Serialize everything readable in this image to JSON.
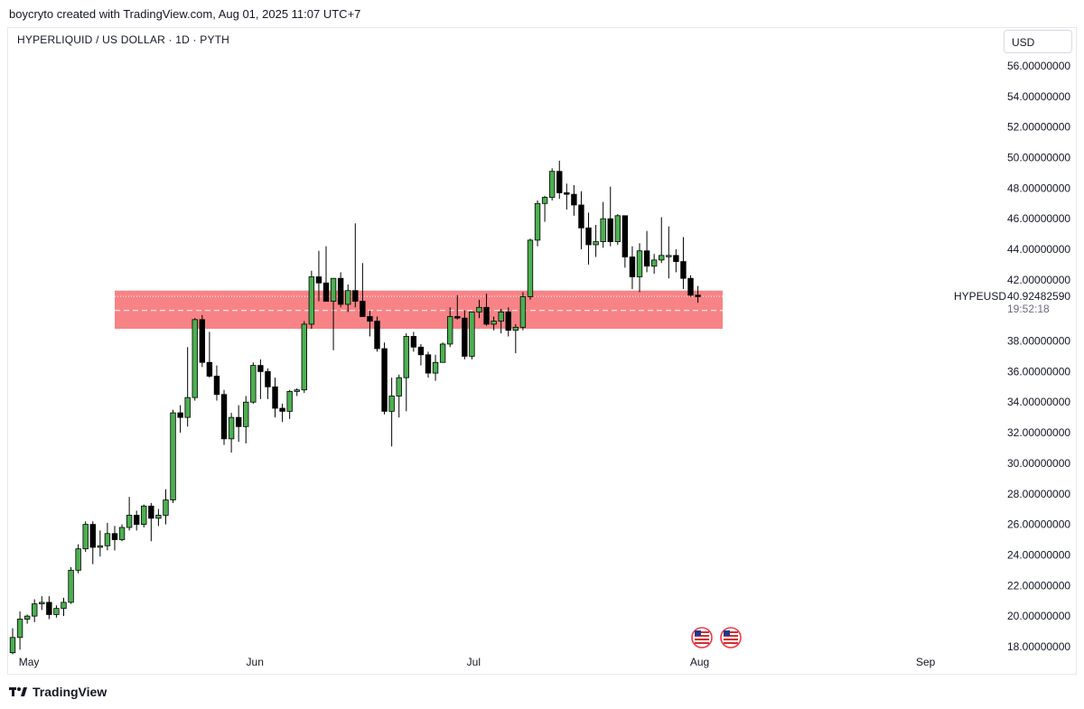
{
  "header": {
    "attribution": "boycryto created with TradingView.com, Aug 01, 2025 11:07 UTC+7"
  },
  "chart_header": {
    "title": "HYPERLIQUID / US DOLLAR · 1D · PYTH"
  },
  "currency_selector": {
    "label": "USD"
  },
  "price_scale": {
    "ticks": [
      "56.00000000",
      "54.00000000",
      "52.00000000",
      "50.00000000",
      "48.00000000",
      "46.00000000",
      "44.00000000",
      "42.00000000",
      "38.00000000",
      "36.00000000",
      "34.00000000",
      "32.00000000",
      "30.00000000",
      "28.00000000",
      "26.00000000",
      "24.00000000",
      "22.00000000",
      "20.00000000",
      "18.00000000"
    ],
    "symbol_label": "HYPEUSD",
    "last_price": "40.92482590",
    "countdown": "19:52:18"
  },
  "time_axis": {
    "labels": [
      "May",
      "Jun",
      "Jul",
      "Aug",
      "Sep"
    ]
  },
  "footer": {
    "brand": "TradingView"
  },
  "colors": {
    "up": "#4caf50",
    "down": "#000000",
    "zone": "#f77c80",
    "grid": "#f0f3fa"
  },
  "icons": [
    "us-flag-event-icon",
    "us-flag-event-icon"
  ],
  "chart_data": {
    "type": "candlestick",
    "title": "HYPERLIQUID / US DOLLAR · 1D · PYTH",
    "symbol": "HYPEUSD",
    "ylim": [
      17.5,
      57
    ],
    "xlabels": [
      "May",
      "Jun",
      "Jul",
      "Aug",
      "Sep"
    ],
    "x_start": "2025-04-30",
    "zone": {
      "low": 38.8,
      "high": 41.3
    },
    "series": [
      {
        "o": 17.6,
        "h": 19.2,
        "l": 17.5,
        "c": 18.6
      },
      {
        "o": 18.6,
        "h": 20.3,
        "l": 17.8,
        "c": 19.8
      },
      {
        "o": 19.8,
        "h": 20.1,
        "l": 19.5,
        "c": 20.0
      },
      {
        "o": 20.0,
        "h": 21.1,
        "l": 19.6,
        "c": 20.8
      },
      {
        "o": 20.8,
        "h": 21.3,
        "l": 20.4,
        "c": 20.9
      },
      {
        "o": 20.9,
        "h": 21.3,
        "l": 19.8,
        "c": 20.1
      },
      {
        "o": 20.1,
        "h": 20.7,
        "l": 19.9,
        "c": 20.5
      },
      {
        "o": 20.5,
        "h": 21.2,
        "l": 20.0,
        "c": 20.9
      },
      {
        "o": 20.9,
        "h": 23.2,
        "l": 20.8,
        "c": 23.0
      },
      {
        "o": 23.0,
        "h": 24.7,
        "l": 22.8,
        "c": 24.4
      },
      {
        "o": 24.4,
        "h": 26.2,
        "l": 24.2,
        "c": 26.0
      },
      {
        "o": 26.0,
        "h": 26.2,
        "l": 23.4,
        "c": 24.5
      },
      {
        "o": 24.5,
        "h": 25.6,
        "l": 23.9,
        "c": 24.6
      },
      {
        "o": 24.6,
        "h": 26.1,
        "l": 24.3,
        "c": 25.4
      },
      {
        "o": 25.4,
        "h": 25.9,
        "l": 24.3,
        "c": 25.0
      },
      {
        "o": 25.0,
        "h": 26.0,
        "l": 24.9,
        "c": 25.8
      },
      {
        "o": 25.8,
        "h": 27.8,
        "l": 25.6,
        "c": 26.6
      },
      {
        "o": 26.6,
        "h": 26.9,
        "l": 25.6,
        "c": 26.0
      },
      {
        "o": 26.0,
        "h": 27.3,
        "l": 25.8,
        "c": 27.2
      },
      {
        "o": 27.2,
        "h": 27.4,
        "l": 24.9,
        "c": 26.4
      },
      {
        "o": 26.4,
        "h": 27.0,
        "l": 25.9,
        "c": 26.6
      },
      {
        "o": 26.6,
        "h": 28.3,
        "l": 26.0,
        "c": 27.6
      },
      {
        "o": 27.6,
        "h": 33.5,
        "l": 27.4,
        "c": 33.3
      },
      {
        "o": 33.3,
        "h": 33.8,
        "l": 32.0,
        "c": 33.0
      },
      {
        "o": 33.0,
        "h": 37.6,
        "l": 32.4,
        "c": 34.3
      },
      {
        "o": 34.3,
        "h": 39.5,
        "l": 34.1,
        "c": 39.4
      },
      {
        "o": 39.4,
        "h": 39.7,
        "l": 36.3,
        "c": 36.6
      },
      {
        "o": 36.6,
        "h": 38.6,
        "l": 35.6,
        "c": 35.7
      },
      {
        "o": 35.7,
        "h": 36.4,
        "l": 34.1,
        "c": 34.5
      },
      {
        "o": 34.5,
        "h": 34.8,
        "l": 31.2,
        "c": 31.6
      },
      {
        "o": 31.6,
        "h": 33.3,
        "l": 30.7,
        "c": 33.0
      },
      {
        "o": 33.0,
        "h": 33.8,
        "l": 31.4,
        "c": 32.4
      },
      {
        "o": 32.4,
        "h": 34.4,
        "l": 31.3,
        "c": 34.0
      },
      {
        "o": 34.0,
        "h": 36.6,
        "l": 33.9,
        "c": 36.4
      },
      {
        "o": 36.4,
        "h": 36.8,
        "l": 34.2,
        "c": 36.0
      },
      {
        "o": 36.0,
        "h": 36.2,
        "l": 34.2,
        "c": 35.0
      },
      {
        "o": 35.0,
        "h": 35.6,
        "l": 33.0,
        "c": 33.6
      },
      {
        "o": 33.6,
        "h": 33.9,
        "l": 32.7,
        "c": 33.4
      },
      {
        "o": 33.4,
        "h": 34.8,
        "l": 32.9,
        "c": 34.7
      },
      {
        "o": 34.7,
        "h": 34.9,
        "l": 34.4,
        "c": 34.8
      },
      {
        "o": 34.8,
        "h": 39.3,
        "l": 34.6,
        "c": 39.1
      },
      {
        "o": 39.1,
        "h": 42.6,
        "l": 38.8,
        "c": 42.2
      },
      {
        "o": 42.2,
        "h": 43.9,
        "l": 40.6,
        "c": 41.8
      },
      {
        "o": 41.8,
        "h": 44.2,
        "l": 40.9,
        "c": 40.6
      },
      {
        "o": 40.6,
        "h": 42.0,
        "l": 37.4,
        "c": 42.1
      },
      {
        "o": 42.1,
        "h": 42.5,
        "l": 40.2,
        "c": 40.4
      },
      {
        "o": 40.4,
        "h": 41.7,
        "l": 39.9,
        "c": 41.3
      },
      {
        "o": 41.3,
        "h": 45.7,
        "l": 40.2,
        "c": 40.6
      },
      {
        "o": 40.6,
        "h": 43.1,
        "l": 39.8,
        "c": 39.6
      },
      {
        "o": 39.6,
        "h": 40.0,
        "l": 38.3,
        "c": 39.3
      },
      {
        "o": 39.3,
        "h": 39.6,
        "l": 37.3,
        "c": 37.5
      },
      {
        "o": 37.5,
        "h": 37.9,
        "l": 33.2,
        "c": 33.4
      },
      {
        "o": 33.4,
        "h": 35.6,
        "l": 31.1,
        "c": 34.4
      },
      {
        "o": 34.4,
        "h": 35.8,
        "l": 33.0,
        "c": 35.6
      },
      {
        "o": 35.6,
        "h": 38.5,
        "l": 33.4,
        "c": 38.3
      },
      {
        "o": 38.3,
        "h": 38.6,
        "l": 37.3,
        "c": 37.6
      },
      {
        "o": 37.6,
        "h": 37.8,
        "l": 36.4,
        "c": 37.1
      },
      {
        "o": 37.1,
        "h": 37.3,
        "l": 35.6,
        "c": 35.9
      },
      {
        "o": 35.9,
        "h": 37.1,
        "l": 35.4,
        "c": 36.6
      },
      {
        "o": 36.6,
        "h": 37.9,
        "l": 36.6,
        "c": 37.8
      },
      {
        "o": 37.8,
        "h": 40.2,
        "l": 37.6,
        "c": 39.6
      },
      {
        "o": 39.6,
        "h": 41.0,
        "l": 39.4,
        "c": 39.5
      },
      {
        "o": 39.5,
        "h": 40.0,
        "l": 36.8,
        "c": 37.0
      },
      {
        "o": 37.0,
        "h": 39.9,
        "l": 36.8,
        "c": 39.9
      },
      {
        "o": 39.9,
        "h": 40.7,
        "l": 39.5,
        "c": 40.2
      },
      {
        "o": 40.2,
        "h": 41.1,
        "l": 39.0,
        "c": 39.1
      },
      {
        "o": 39.1,
        "h": 39.6,
        "l": 38.7,
        "c": 39.3
      },
      {
        "o": 39.3,
        "h": 40.1,
        "l": 38.5,
        "c": 39.9
      },
      {
        "o": 39.9,
        "h": 40.2,
        "l": 38.3,
        "c": 38.7
      },
      {
        "o": 38.7,
        "h": 39.1,
        "l": 37.2,
        "c": 38.9
      },
      {
        "o": 38.9,
        "h": 41.2,
        "l": 38.7,
        "c": 40.9
      },
      {
        "o": 40.9,
        "h": 44.7,
        "l": 40.7,
        "c": 44.6
      },
      {
        "o": 44.6,
        "h": 47.2,
        "l": 44.2,
        "c": 47.0
      },
      {
        "o": 47.0,
        "h": 47.5,
        "l": 45.8,
        "c": 47.4
      },
      {
        "o": 47.4,
        "h": 49.3,
        "l": 47.2,
        "c": 49.1
      },
      {
        "o": 49.1,
        "h": 49.8,
        "l": 47.3,
        "c": 47.7
      },
      {
        "o": 47.7,
        "h": 48.3,
        "l": 46.6,
        "c": 47.6
      },
      {
        "o": 47.6,
        "h": 48.2,
        "l": 46.2,
        "c": 46.9
      },
      {
        "o": 46.9,
        "h": 47.8,
        "l": 44.0,
        "c": 45.4
      },
      {
        "o": 45.4,
        "h": 46.4,
        "l": 43.0,
        "c": 44.3
      },
      {
        "o": 44.3,
        "h": 45.6,
        "l": 43.5,
        "c": 44.5
      },
      {
        "o": 44.5,
        "h": 47.1,
        "l": 44.1,
        "c": 46.0
      },
      {
        "o": 46.0,
        "h": 48.1,
        "l": 44.2,
        "c": 44.5
      },
      {
        "o": 44.5,
        "h": 46.3,
        "l": 44.3,
        "c": 46.2
      },
      {
        "o": 46.2,
        "h": 46.2,
        "l": 42.8,
        "c": 43.5
      },
      {
        "o": 43.5,
        "h": 44.2,
        "l": 41.4,
        "c": 42.2
      },
      {
        "o": 42.2,
        "h": 44.4,
        "l": 41.2,
        "c": 43.9
      },
      {
        "o": 43.9,
        "h": 45.2,
        "l": 42.5,
        "c": 42.9
      },
      {
        "o": 42.9,
        "h": 43.7,
        "l": 42.4,
        "c": 43.3
      },
      {
        "o": 43.3,
        "h": 46.1,
        "l": 43.1,
        "c": 43.6
      },
      {
        "o": 43.6,
        "h": 45.5,
        "l": 42.1,
        "c": 43.6
      },
      {
        "o": 43.6,
        "h": 44.0,
        "l": 42.5,
        "c": 43.2
      },
      {
        "o": 43.2,
        "h": 44.8,
        "l": 41.4,
        "c": 42.1
      },
      {
        "o": 42.1,
        "h": 42.3,
        "l": 40.9,
        "c": 41.0
      },
      {
        "o": 41.0,
        "h": 41.6,
        "l": 40.5,
        "c": 40.9
      }
    ]
  }
}
